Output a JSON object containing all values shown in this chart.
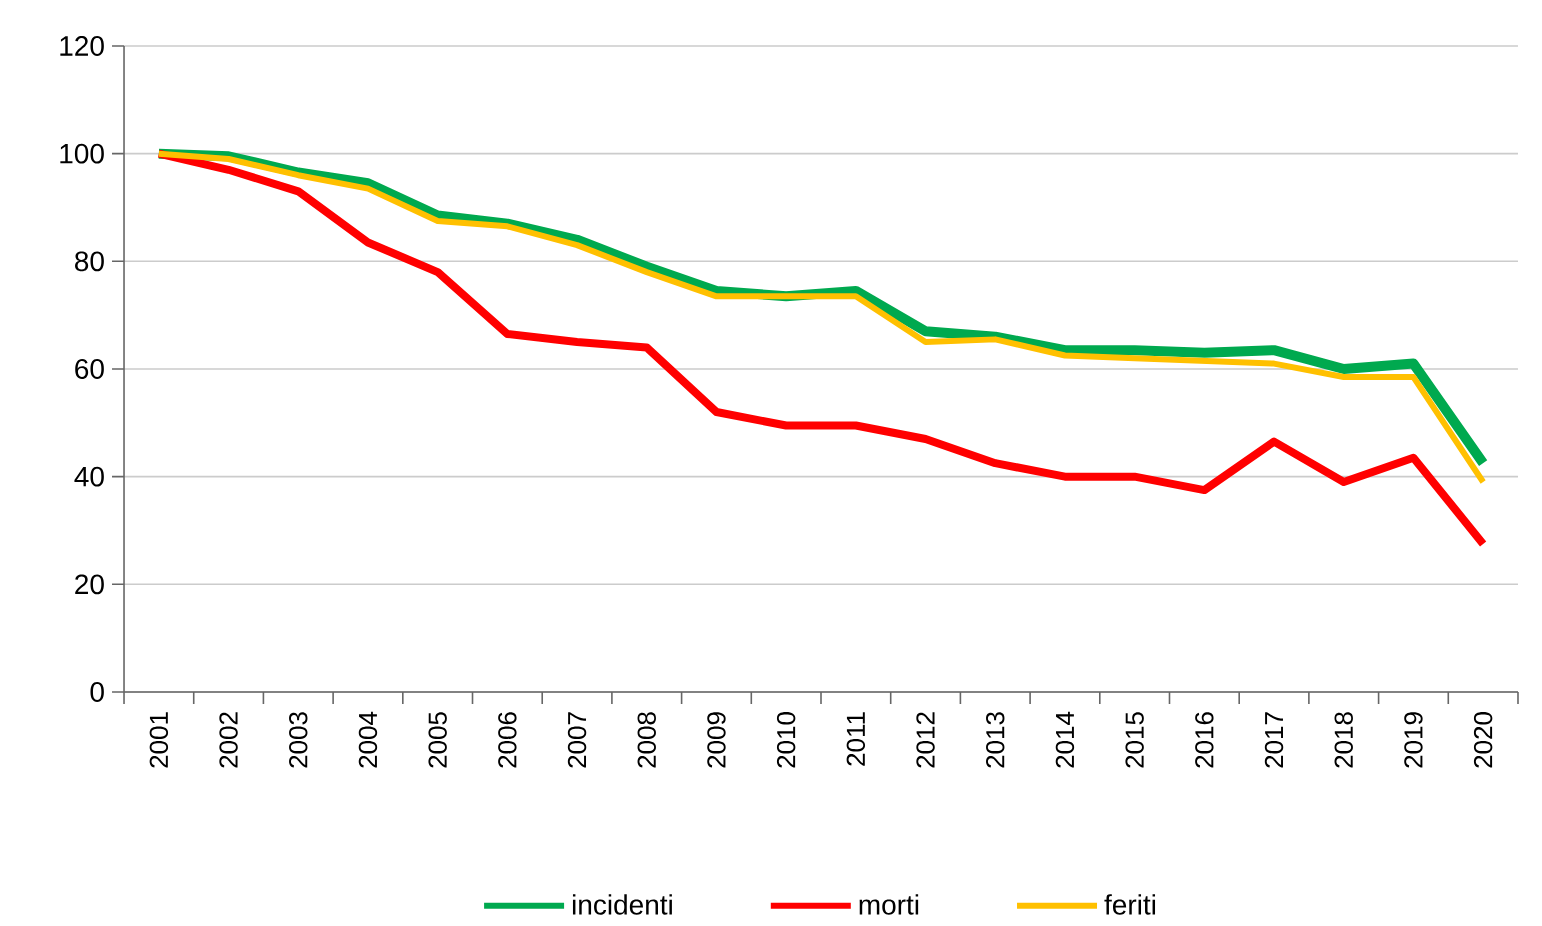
{
  "chart_data": {
    "type": "line",
    "categories": [
      "2001",
      "2002",
      "2003",
      "2004",
      "2005",
      "2006",
      "2007",
      "2008",
      "2009",
      "2010",
      "2011",
      "2012",
      "2013",
      "2014",
      "2015",
      "2016",
      "2017",
      "2018",
      "2019",
      "2020"
    ],
    "series": [
      {
        "name": "incidenti",
        "color": "#00a94f",
        "values": [
          100,
          99.5,
          96.5,
          94.5,
          88.5,
          87,
          84,
          79,
          74.5,
          73.5,
          74.5,
          67,
          66,
          63.5,
          63.5,
          63,
          63.5,
          60,
          61,
          42.5
        ]
      },
      {
        "name": "morti",
        "color": "#ff0000",
        "values": [
          100,
          97,
          93,
          83.5,
          78,
          66.5,
          65,
          64,
          52,
          49.5,
          49.5,
          47,
          42.5,
          40,
          40,
          37.5,
          46.5,
          39,
          43.5,
          27.5
        ]
      },
      {
        "name": "feriti",
        "color": "#ffc000",
        "values": [
          100,
          99,
          96,
          93.5,
          87.5,
          86.5,
          83,
          78,
          73.5,
          73.5,
          73.5,
          65,
          65.5,
          62.5,
          62,
          61.5,
          61,
          58.5,
          58.5,
          39
        ]
      }
    ],
    "ylim": [
      0,
      120
    ],
    "yticks": [
      0,
      20,
      40,
      60,
      80,
      100,
      120
    ],
    "grid": "y",
    "legend": "bottom",
    "marker": "none",
    "line_style": "solid"
  }
}
